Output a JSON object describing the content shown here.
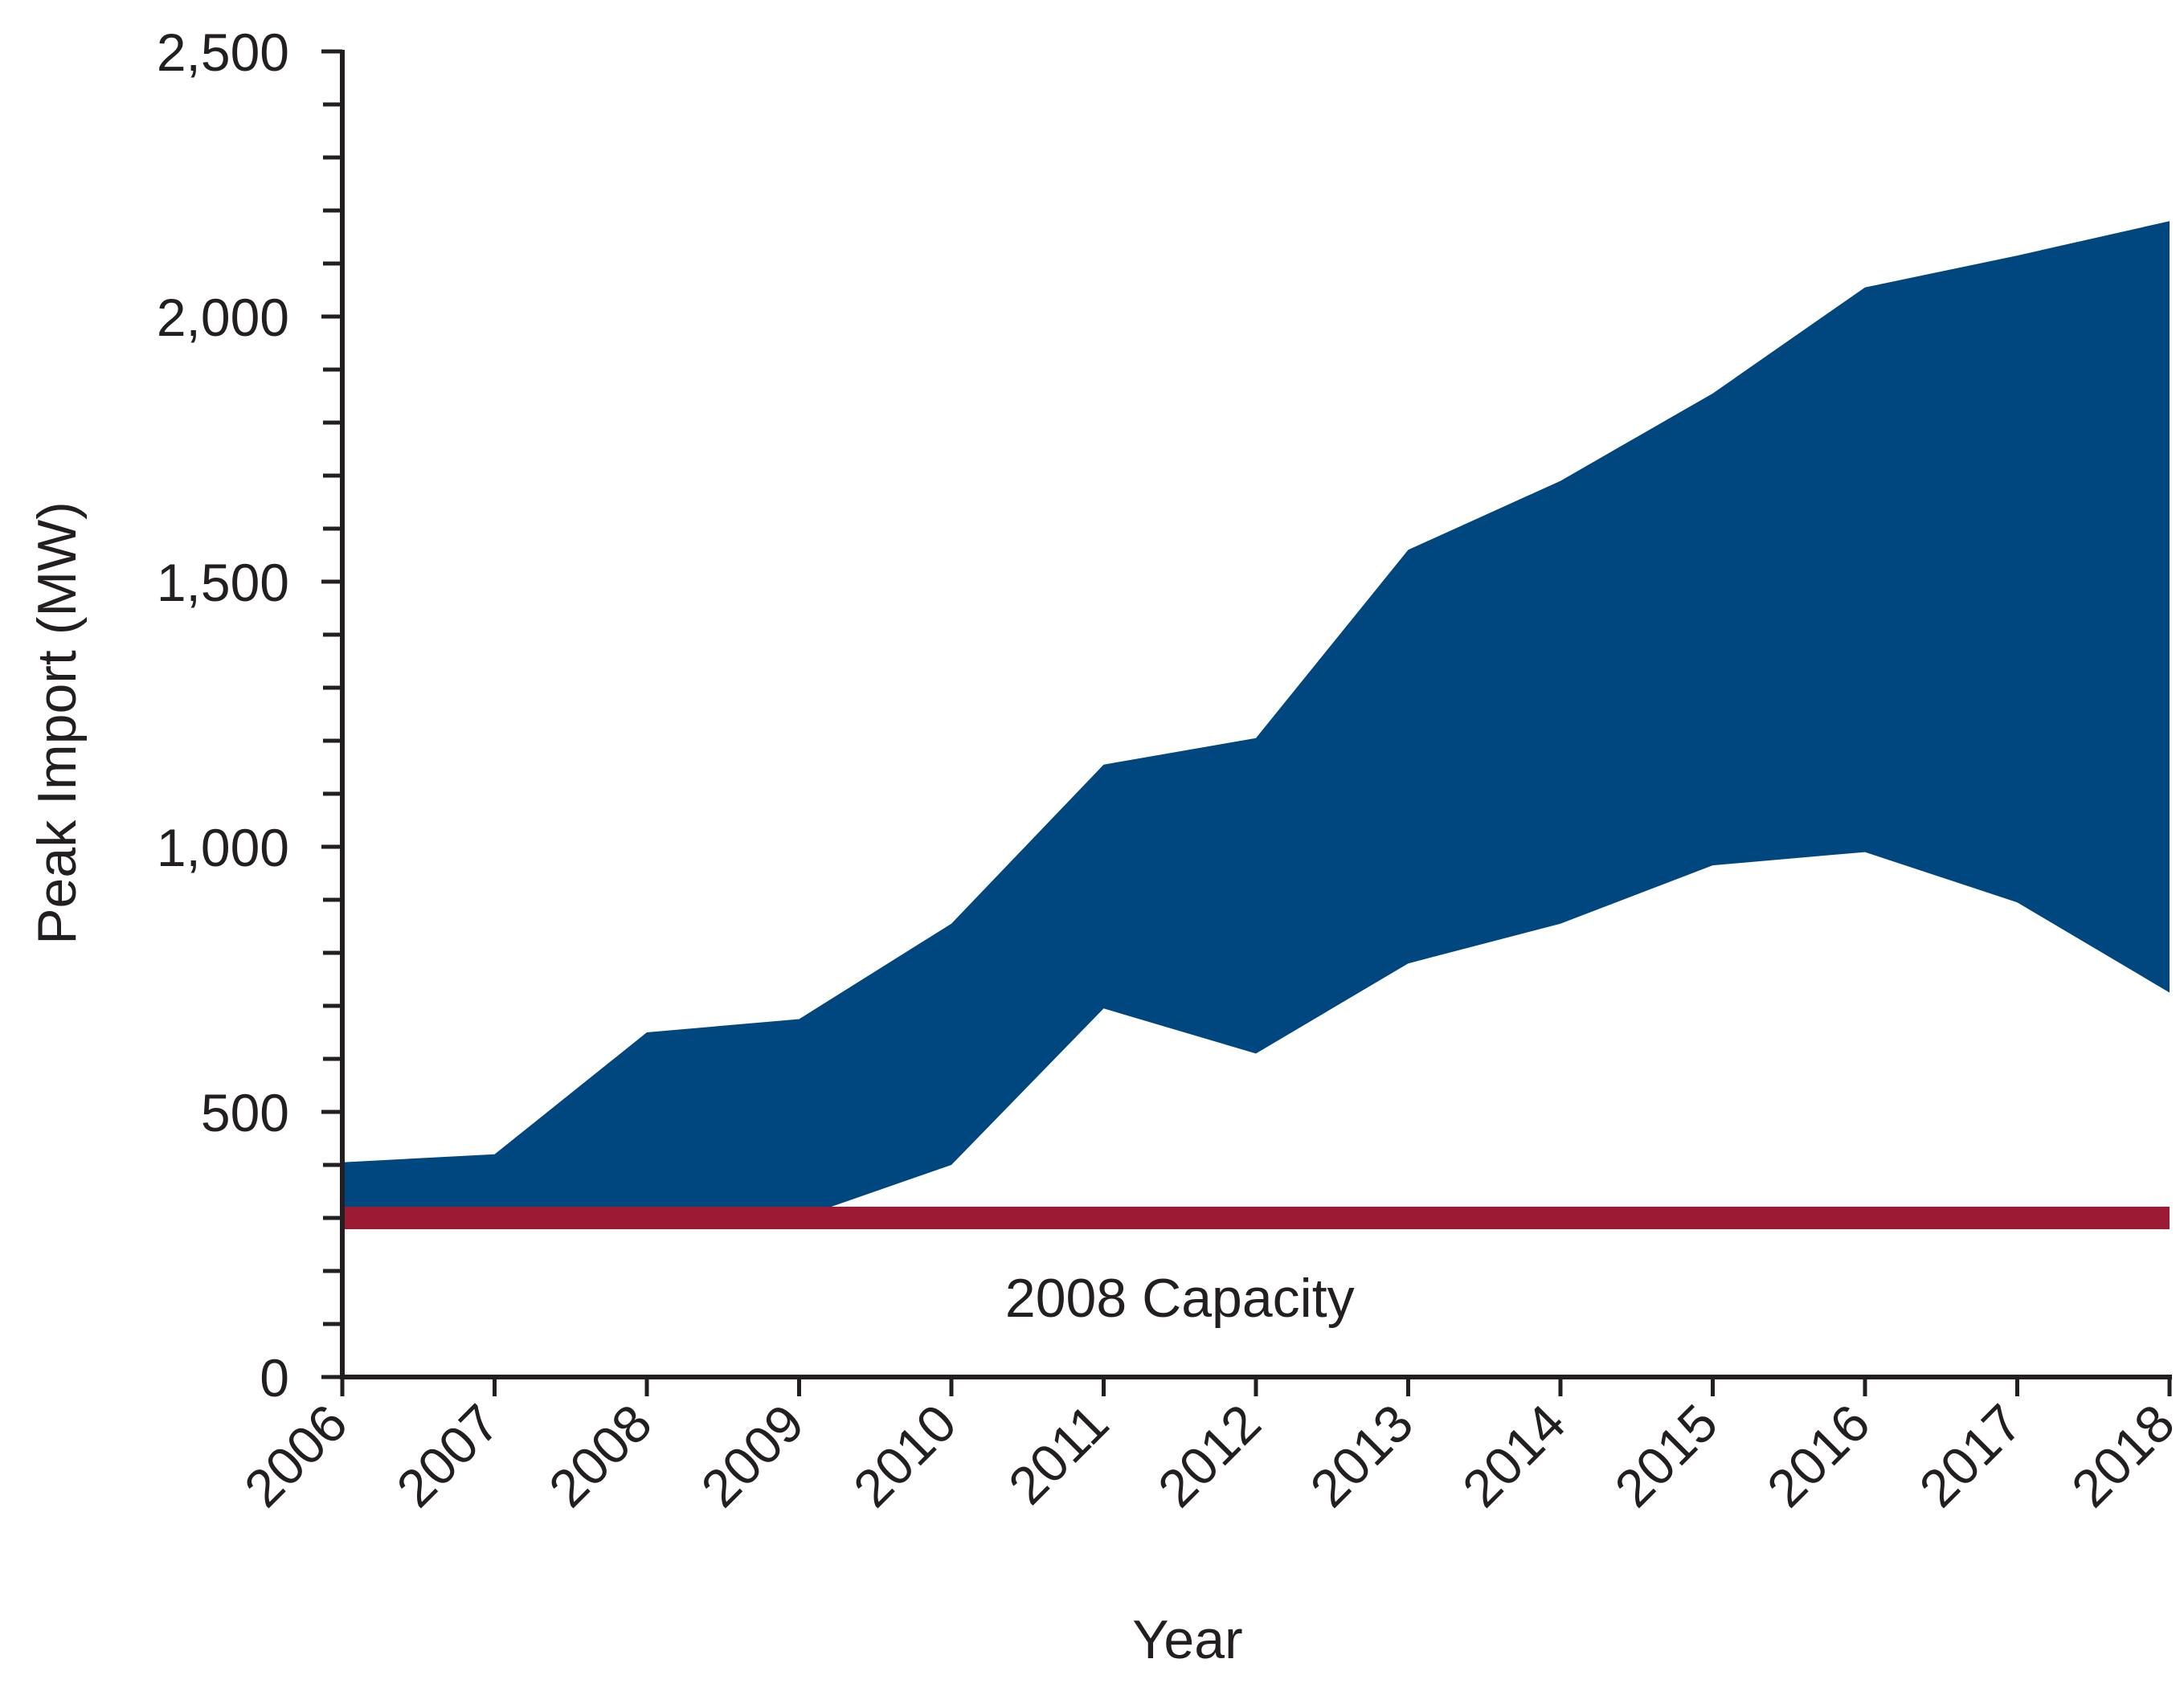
{
  "chart_data": {
    "type": "area",
    "title": "",
    "xlabel": "Year",
    "ylabel": "Peak Import (MW)",
    "x": [
      2006,
      2007,
      2008,
      2009,
      2010,
      2011,
      2012,
      2013,
      2014,
      2015,
      2016,
      2017,
      2018
    ],
    "x_tick_labels": [
      "2006",
      "2007",
      "2008",
      "2009",
      "2010",
      "2011",
      "2012",
      "2013",
      "2014",
      "2015",
      "2016",
      "2017",
      "2018"
    ],
    "ylim": [
      0,
      2500
    ],
    "y_ticks": [
      0,
      500,
      1000,
      1500,
      2000,
      2500
    ],
    "y_tick_labels": [
      "0",
      "500",
      "1,000",
      "1,500",
      "2,000",
      "2,500"
    ],
    "y_minor_step": 100,
    "series": [
      {
        "kind": "band",
        "color": "#00467f",
        "upper": [
          405,
          420,
          650,
          675,
          855,
          1155,
          1205,
          1560,
          1690,
          1855,
          2055,
          2115,
          2180
        ],
        "lower": [
          300,
          300,
          300,
          300,
          400,
          695,
          610,
          780,
          855,
          965,
          990,
          895,
          725
        ]
      },
      {
        "kind": "reference_line",
        "color": "#9b1a34",
        "value": 300
      }
    ],
    "annotations": [
      {
        "text": "2008 Capacity",
        "x": 2011.5,
        "y": 150
      }
    ],
    "grid": false,
    "legend": "none"
  }
}
